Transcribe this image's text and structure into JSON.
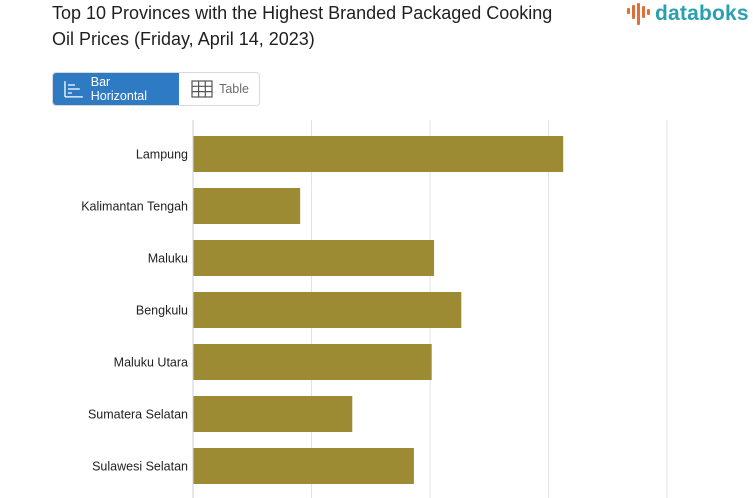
{
  "title": "Top 10 Provinces with the Highest Branded Packaged Cooking Oil Prices (Friday, April 14, 2023)",
  "brand": "databoks",
  "view_toggle": {
    "bar_label": "Bar Horizontal",
    "table_label": "Table",
    "selected": "Bar Horizontal"
  },
  "colors": {
    "bar": "#9c8b33",
    "accent": "#2e7bc4",
    "brand": "#2a9fb0",
    "logo_bars": "#e0703a",
    "grid": "#e3e3e3"
  },
  "chart_data": {
    "type": "bar",
    "orientation": "horizontal",
    "title": "Top 10 Provinces with the Highest Branded Packaged Cooking Oil Prices (Friday, April 14, 2023)",
    "categories": [
      "Lampung",
      "Kalimantan Tengah",
      "Maluku",
      "Bengkulu",
      "Maluku Utara",
      "Sumatera Selatan",
      "Sulawesi Selatan"
    ],
    "values": [
      31.2,
      9.0,
      20.3,
      22.6,
      20.1,
      13.4,
      18.6
    ],
    "xlim": [
      0,
      40
    ],
    "grid": true
  }
}
